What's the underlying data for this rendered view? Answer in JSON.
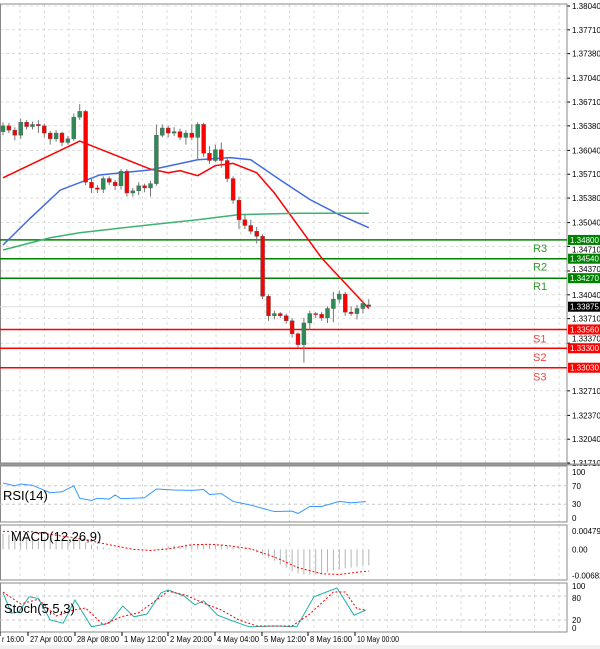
{
  "chart_data": [
    {
      "type": "candlestick",
      "panel": "price",
      "candle_fields": [
        "open",
        "high",
        "low",
        "close"
      ],
      "candles": [
        [
          1.363,
          1.3643,
          1.3625,
          1.3638
        ],
        [
          1.3638,
          1.3642,
          1.3628,
          1.3632
        ],
        [
          1.3632,
          1.3636,
          1.3618,
          1.3625
        ],
        [
          1.3625,
          1.3648,
          1.362,
          1.3643
        ],
        [
          1.3643,
          1.3646,
          1.3633,
          1.3637
        ],
        [
          1.3637,
          1.3644,
          1.3633,
          1.364
        ],
        [
          1.364,
          1.3646,
          1.3628,
          1.3638
        ],
        [
          1.3638,
          1.3641,
          1.3622,
          1.3628
        ],
        [
          1.3628,
          1.3631,
          1.3612,
          1.362
        ],
        [
          1.362,
          1.3632,
          1.3616,
          1.3628
        ],
        [
          1.3628,
          1.363,
          1.361,
          1.3615
        ],
        [
          1.3615,
          1.3624,
          1.3612,
          1.362
        ],
        [
          1.362,
          1.3655,
          1.3617,
          1.365
        ],
        [
          1.365,
          1.3668,
          1.3646,
          1.3658
        ],
        [
          1.3658,
          1.366,
          1.3556,
          1.356
        ],
        [
          1.356,
          1.3566,
          1.3545,
          1.3552
        ],
        [
          1.3552,
          1.3556,
          1.3545,
          1.355
        ],
        [
          1.355,
          1.3568,
          1.3545,
          1.3565
        ],
        [
          1.3565,
          1.3568,
          1.3556,
          1.356
        ],
        [
          1.356,
          1.3563,
          1.3549,
          1.3555
        ],
        [
          1.3555,
          1.3578,
          1.355,
          1.3575
        ],
        [
          1.3575,
          1.3578,
          1.354,
          1.3545
        ],
        [
          1.3545,
          1.3552,
          1.354,
          1.3548
        ],
        [
          1.3548,
          1.356,
          1.3542,
          1.3555
        ],
        [
          1.3555,
          1.3558,
          1.3546,
          1.3552
        ],
        [
          1.3552,
          1.3562,
          1.354,
          1.3558
        ],
        [
          1.3558,
          1.364,
          1.3555,
          1.3625
        ],
        [
          1.3625,
          1.364,
          1.3622,
          1.3635
        ],
        [
          1.3635,
          1.3638,
          1.3622,
          1.3628
        ],
        [
          1.3628,
          1.3636,
          1.3624,
          1.363
        ],
        [
          1.363,
          1.3634,
          1.3618,
          1.3622
        ],
        [
          1.3622,
          1.3632,
          1.3612,
          1.3628
        ],
        [
          1.3628,
          1.364,
          1.3618,
          1.3622
        ],
        [
          1.3622,
          1.3643,
          1.359,
          1.364
        ],
        [
          1.364,
          1.3642,
          1.3595,
          1.36
        ],
        [
          1.36,
          1.361,
          1.3585,
          1.359
        ],
        [
          1.359,
          1.3612,
          1.3588,
          1.3605
        ],
        [
          1.3605,
          1.3615,
          1.358,
          1.359
        ],
        [
          1.359,
          1.3595,
          1.356,
          1.3565
        ],
        [
          1.3565,
          1.3568,
          1.353,
          1.3535
        ],
        [
          1.3535,
          1.354,
          1.3495,
          1.3508
        ],
        [
          1.3508,
          1.3515,
          1.3495,
          1.35
        ],
        [
          1.35,
          1.3508,
          1.3488,
          1.3492
        ],
        [
          1.3492,
          1.3498,
          1.3475,
          1.3485
        ],
        [
          1.3485,
          1.3488,
          1.3398,
          1.3402
        ],
        [
          1.3402,
          1.3405,
          1.3368,
          1.3375
        ],
        [
          1.3375,
          1.3382,
          1.337,
          1.3378
        ],
        [
          1.3378,
          1.338,
          1.3372,
          1.3375
        ],
        [
          1.3375,
          1.3378,
          1.3364,
          1.3368
        ],
        [
          1.3368,
          1.3372,
          1.3345,
          1.335
        ],
        [
          1.335,
          1.3352,
          1.333,
          1.3335
        ],
        [
          1.3335,
          1.3372,
          1.331,
          1.3365
        ],
        [
          1.3365,
          1.3382,
          1.3355,
          1.3378
        ],
        [
          1.3378,
          1.338,
          1.3372,
          1.3377
        ],
        [
          1.3377,
          1.338,
          1.3368,
          1.3372
        ],
        [
          1.3372,
          1.3388,
          1.3365,
          1.3385
        ],
        [
          1.3385,
          1.3408,
          1.3366,
          1.3398
        ],
        [
          1.3398,
          1.341,
          1.3392,
          1.3405
        ],
        [
          1.3405,
          1.3408,
          1.3375,
          1.338
        ],
        [
          1.338,
          1.3388,
          1.3375,
          1.3378
        ],
        [
          1.3378,
          1.339,
          1.337,
          1.3385
        ],
        [
          1.3385,
          1.3396,
          1.3378,
          1.3392
        ],
        [
          1.339,
          1.3398,
          1.3386,
          1.3388
        ]
      ],
      "moving_averages": [
        {
          "color": "#ff0000",
          "points": [
            [
              0,
              1.3566
            ],
            [
              13,
              1.3617
            ],
            [
              25,
              1.3578
            ],
            [
              28,
              1.3573
            ],
            [
              30,
              1.3576
            ],
            [
              33,
              1.3569
            ],
            [
              36,
              1.3583
            ],
            [
              39,
              1.3586
            ],
            [
              43,
              1.3573
            ],
            [
              46,
              1.3545
            ],
            [
              50,
              1.35
            ],
            [
              54,
              1.3455
            ],
            [
              58,
              1.342
            ],
            [
              62,
              1.3385
            ]
          ]
        },
        {
          "color": "#4169e1",
          "points": [
            [
              0,
              1.3473
            ],
            [
              4.6,
              1.351
            ],
            [
              9.7,
              1.3549
            ],
            [
              16.4,
              1.357
            ],
            [
              25,
              1.3577
            ],
            [
              33,
              1.3591
            ],
            [
              38.5,
              1.3594
            ],
            [
              42,
              1.3591
            ],
            [
              47,
              1.3563
            ],
            [
              52,
              1.3536
            ],
            [
              57,
              1.3515
            ],
            [
              62,
              1.3497
            ]
          ]
        },
        {
          "color": "#3cb371",
          "points": [
            [
              0,
              1.3466
            ],
            [
              8,
              1.3483
            ],
            [
              13,
              1.349
            ],
            [
              25,
              1.3501
            ],
            [
              33,
              1.3508
            ],
            [
              40,
              1.3515
            ],
            [
              50,
              1.3517
            ],
            [
              62,
              1.3517
            ]
          ]
        }
      ],
      "levels": [
        {
          "name": "R3",
          "value": 1.348,
          "label": "1.34800",
          "color": "#008000"
        },
        {
          "name": "R2",
          "value": 1.3454,
          "label": "1.34540",
          "color": "#008000"
        },
        {
          "name": "R1",
          "value": 1.3427,
          "label": "1.34270",
          "color": "#008000"
        },
        {
          "name": "S1",
          "value": 1.3356,
          "label": "1.33560",
          "color": "#ff0000"
        },
        {
          "name": "S2",
          "value": 1.333,
          "label": "1.33300",
          "color": "#ff0000"
        },
        {
          "name": "S3",
          "value": 1.3303,
          "label": "1.33030",
          "color": "#ff0000"
        }
      ],
      "current_price": {
        "value": 1.33875,
        "label": "1.33875"
      },
      "ylim": [
        1.3171,
        1.3804
      ],
      "y_ticks": [
        "1.38040",
        "1.37710",
        "1.37380",
        "1.37040",
        "1.36710",
        "1.36380",
        "1.36040",
        "1.35710",
        "1.35380",
        "1.35040",
        "1.34710",
        "1.34370",
        "1.34040",
        "1.33710",
        "1.33370",
        "1.32710",
        "1.32370",
        "1.32040",
        "1.31710"
      ],
      "grid": true
    },
    {
      "type": "line",
      "panel": "rsi",
      "title": "RSI(14)",
      "ylim": [
        0,
        100
      ],
      "y_ticks": [
        "100",
        "70",
        "30",
        "0"
      ],
      "color": "#3399ff",
      "points": [
        [
          0,
          76
        ],
        [
          2,
          70
        ],
        [
          3,
          74
        ],
        [
          5,
          71
        ],
        [
          8,
          55
        ],
        [
          10,
          57
        ],
        [
          12,
          70
        ],
        [
          13,
          43
        ],
        [
          15,
          38
        ],
        [
          16,
          43
        ],
        [
          18,
          41
        ],
        [
          19,
          50
        ],
        [
          20,
          42
        ],
        [
          24,
          44
        ],
        [
          26,
          63
        ],
        [
          29,
          61
        ],
        [
          32,
          60
        ],
        [
          34,
          62
        ],
        [
          35,
          51
        ],
        [
          37,
          53
        ],
        [
          39,
          36
        ],
        [
          42,
          28
        ],
        [
          46,
          14
        ],
        [
          49,
          15
        ],
        [
          50,
          10
        ],
        [
          52,
          25
        ],
        [
          54,
          25
        ],
        [
          57,
          36
        ],
        [
          59,
          33
        ],
        [
          61.5,
          36
        ]
      ]
    },
    {
      "type": "bar",
      "panel": "macd",
      "title": "MACD(12,26,9)",
      "ylim": [
        -0.006827,
        0.004791
      ],
      "y_ticks": [
        "0.004791",
        "0.00",
        "-0.006827"
      ],
      "histogram": [
        0.004,
        0.0038,
        0.0036,
        0.0034,
        0.0033,
        0.0032,
        0.003,
        0.0028,
        0.0027,
        0.0026,
        0.0025,
        0.0024,
        0.0026,
        0.0028,
        0.0018,
        0.0012,
        0.0008,
        0.0005,
        0.0003,
        0.0002,
        0.0002,
        0.0001,
        0.0,
        -0.0001,
        -0.0001,
        0.0,
        0.0002,
        0.0004,
        0.0008,
        0.001,
        0.0011,
        0.0012,
        0.0012,
        0.0013,
        0.0013,
        0.0012,
        0.0012,
        0.0013,
        0.001,
        0.0008,
        0.0005,
        0.0002,
        -0.0002,
        -0.0008,
        -0.0015,
        -0.0022,
        -0.003,
        -0.004,
        -0.0048,
        -0.0058,
        -0.0063,
        -0.0066,
        -0.0067,
        -0.0066,
        -0.0063,
        -0.006,
        -0.0056,
        -0.0053,
        -0.005,
        -0.0048,
        -0.0046,
        -0.0044,
        -0.0042
      ],
      "signal": [
        [
          0,
          0.0047
        ],
        [
          5,
          0.0046
        ],
        [
          13,
          0.0028
        ],
        [
          18,
          0.0012
        ],
        [
          22,
          0.0
        ],
        [
          25,
          -0.0003
        ],
        [
          28,
          0.0001
        ],
        [
          32,
          0.0012
        ],
        [
          35,
          0.0013
        ],
        [
          38,
          0.001
        ],
        [
          42,
          0.0001
        ],
        [
          46,
          -0.002
        ],
        [
          50,
          -0.0048
        ],
        [
          54,
          -0.0064
        ],
        [
          57,
          -0.0066
        ],
        [
          60,
          -0.006
        ],
        [
          62,
          -0.0057
        ]
      ]
    },
    {
      "type": "line",
      "panel": "stoch",
      "title": "Stoch(5,5,3)",
      "ylim": [
        0,
        100
      ],
      "y_ticks": [
        "100",
        "80",
        "20",
        "0"
      ],
      "main": [
        [
          0,
          88
        ],
        [
          1.4,
          37
        ],
        [
          2.7,
          40
        ],
        [
          4.4,
          78
        ],
        [
          6,
          74
        ],
        [
          8,
          20
        ],
        [
          10.2,
          12
        ],
        [
          12.2,
          70
        ],
        [
          15,
          3
        ],
        [
          18,
          12
        ],
        [
          20.3,
          55
        ],
        [
          22.2,
          28
        ],
        [
          24.4,
          35
        ],
        [
          26.8,
          88
        ],
        [
          28,
          95
        ],
        [
          30.7,
          80
        ],
        [
          32.5,
          58
        ],
        [
          34,
          68
        ],
        [
          36.4,
          32
        ],
        [
          38.5,
          20
        ],
        [
          41.7,
          3
        ],
        [
          46.3,
          5
        ],
        [
          49.8,
          3
        ],
        [
          52.7,
          78
        ],
        [
          56.6,
          100
        ],
        [
          59.5,
          32
        ],
        [
          61.5,
          45
        ]
      ],
      "signal": [
        [
          0,
          90
        ],
        [
          3,
          60
        ],
        [
          6,
          72
        ],
        [
          9,
          30
        ],
        [
          12,
          45
        ],
        [
          14,
          50
        ],
        [
          17,
          8
        ],
        [
          20,
          28
        ],
        [
          23,
          38
        ],
        [
          26,
          70
        ],
        [
          28,
          92
        ],
        [
          31,
          82
        ],
        [
          34,
          62
        ],
        [
          37,
          45
        ],
        [
          40,
          20
        ],
        [
          43,
          5
        ],
        [
          49,
          5
        ],
        [
          52,
          35
        ],
        [
          56,
          90
        ],
        [
          58,
          90
        ],
        [
          60,
          48
        ],
        [
          61.5,
          45
        ]
      ]
    }
  ],
  "time_axis": [
    "r 16:00",
    "27 Apr 00:00",
    "28 Apr 08:00",
    "1 May 12:00",
    "2 May 20:00",
    "4 May 04:00",
    "5 May 12:00",
    "8 May 16:00",
    "10 May 00:00"
  ],
  "colors": {
    "bull": "#2e8b57",
    "bear": "#ff0000",
    "grid": "#c8c8c8",
    "rsi": "#3399ff",
    "stoch_main": "#20b2aa",
    "stoch_signal": "#ff0000",
    "macd_hist": "#b4b4b4"
  }
}
